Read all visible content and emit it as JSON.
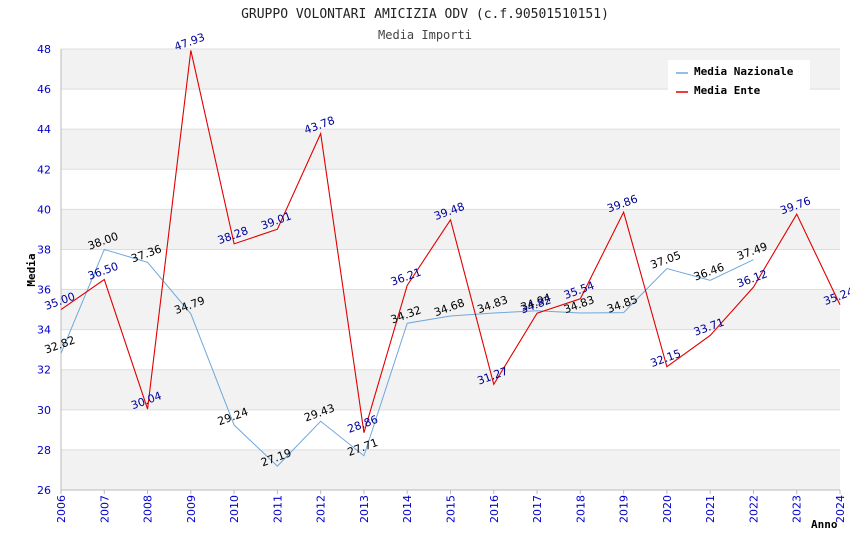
{
  "chart_data": {
    "type": "line",
    "title": "GRUPPO VOLONTARI AMICIZIA ODV (c.f.90501510151)",
    "subtitle": "Media Importi",
    "xlabel": "Anno",
    "ylabel": "Media",
    "ylim": [
      26,
      48
    ],
    "yticks": [
      "26",
      "28",
      "30",
      "32",
      "34",
      "36",
      "38",
      "40",
      "42",
      "44",
      "46",
      "48"
    ],
    "x": [
      "2006",
      "2007",
      "2008",
      "2009",
      "2010",
      "2011",
      "2012",
      "2013",
      "2014",
      "2015",
      "2016",
      "2017",
      "2018",
      "2019",
      "2020",
      "2021",
      "2022",
      "2023",
      "2024"
    ],
    "grid": "horizontal bands",
    "legend_position": "top-right",
    "series": [
      {
        "name": "Media Nazionale",
        "color": "#6fa8dc",
        "label_color": "#000000",
        "values": [
          32.82,
          38.0,
          37.36,
          34.79,
          29.24,
          27.19,
          29.43,
          27.71,
          34.32,
          34.68,
          34.83,
          34.94,
          34.83,
          34.85,
          37.05,
          36.46,
          37.49,
          null,
          null
        ],
        "labels": [
          "32.82",
          "38.00",
          "37.36",
          "34.79",
          "29.24",
          "27.19",
          "29.43",
          "27.71",
          "34.32",
          "34.68",
          "34.83",
          "34.94",
          "34.83",
          "34.85",
          "37.05",
          "36.46",
          "37.49",
          "",
          ""
        ]
      },
      {
        "name": "Media Ente",
        "color": "#e00000",
        "label_color": "#000099",
        "values": [
          35.0,
          36.5,
          30.04,
          47.93,
          38.28,
          39.01,
          43.78,
          28.86,
          36.21,
          39.48,
          31.27,
          34.82,
          35.54,
          39.86,
          32.15,
          33.71,
          36.12,
          39.76,
          35.24
        ],
        "labels": [
          "35.00",
          "36.50",
          "30.04",
          "47.93",
          "38.28",
          "39.01",
          "43.78",
          "28.86",
          "36.21",
          "39.48",
          "31.27",
          "34.82",
          "35.54",
          "39.86",
          "32.15",
          "33.71",
          "36.12",
          "39.76",
          "35.24"
        ]
      }
    ]
  }
}
